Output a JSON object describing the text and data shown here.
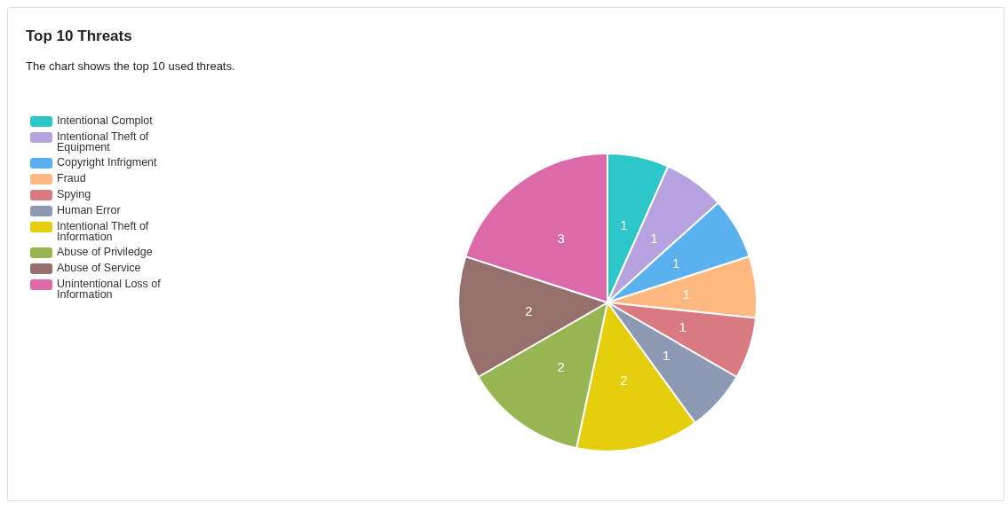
{
  "chart_data": {
    "type": "pie",
    "title": "Top 10 Threats",
    "subtitle": "The chart shows the top 10 used threats.",
    "categories": [
      "Intentional Complot",
      "Intentional Theft of Equipment",
      "Copyright Infrigment",
      "Fraud",
      "Spying",
      "Human Error",
      "Intentional Theft of Information",
      "Abuse of Priviledge",
      "Abuse of Service",
      "Unintentional Loss of Information"
    ],
    "values": [
      1,
      1,
      1,
      1,
      1,
      1,
      2,
      2,
      2,
      3
    ],
    "colors": [
      "#2ec7c9",
      "#b6a2de",
      "#5ab1ef",
      "#ffb980",
      "#d87a80",
      "#8d98b3",
      "#e5cf0d",
      "#97b552",
      "#95706d",
      "#dc69aa"
    ],
    "data_labels": true,
    "legend": "left"
  }
}
